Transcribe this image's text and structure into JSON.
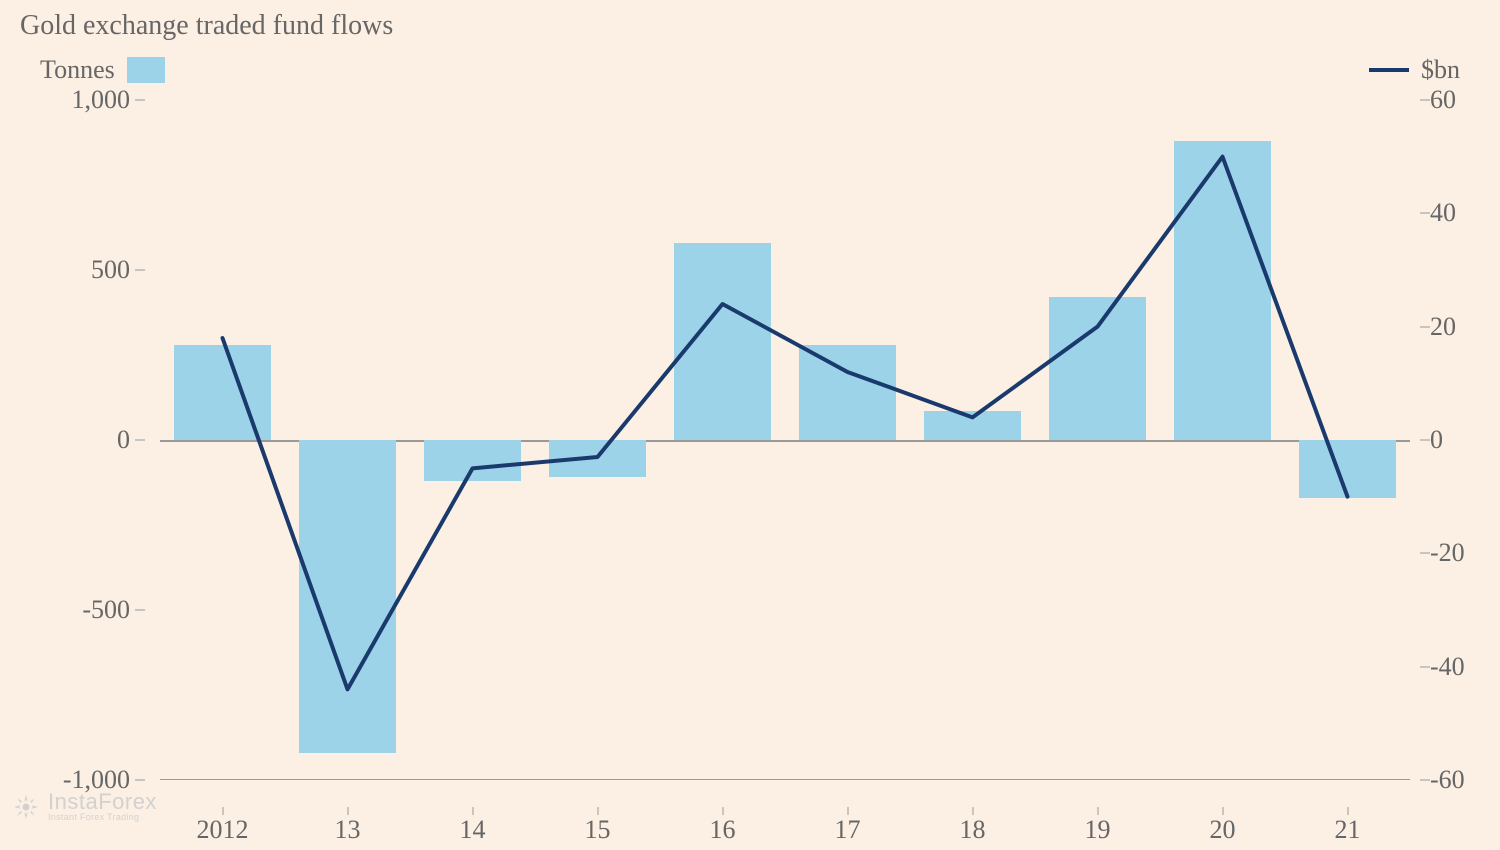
{
  "chart": {
    "type": "bar+line",
    "title": "Gold exchange traded fund flows",
    "title_fontsize": 28,
    "title_color": "#666666",
    "background_color": "#fcf0e4",
    "legend": {
      "bar_label": "Tonnes",
      "line_label": "$bn",
      "label_fontsize": 26,
      "label_color": "#666666"
    },
    "x_axis": {
      "categories": [
        "2012",
        "13",
        "14",
        "15",
        "16",
        "17",
        "18",
        "19",
        "20",
        "21"
      ],
      "label_fontsize": 26,
      "label_color": "#666666",
      "tick_color": "#999999"
    },
    "y_axis_left": {
      "label": "Tonnes",
      "min": -1000,
      "max": 1000,
      "ticks": [
        1000,
        500,
        0,
        -500,
        -1000
      ],
      "tick_labels": [
        "1,000",
        "500",
        "0",
        "-500",
        "-1,000"
      ],
      "label_fontsize": 26,
      "label_color": "#666666",
      "tick_color": "#999999"
    },
    "y_axis_right": {
      "label": "$bn",
      "min": -60,
      "max": 60,
      "ticks": [
        60,
        40,
        20,
        0,
        -20,
        -40,
        -60
      ],
      "tick_labels": [
        "60",
        "40",
        "20",
        "0",
        "-20",
        "-40",
        "-60"
      ],
      "label_fontsize": 26,
      "label_color": "#666666",
      "tick_color": "#999999"
    },
    "bars": {
      "values": [
        280,
        -920,
        -120,
        -110,
        580,
        280,
        85,
        420,
        880,
        -170
      ],
      "color": "#9dd3e8",
      "width_ratio": 0.78
    },
    "line": {
      "values": [
        18,
        -44,
        -5,
        -3,
        24,
        12,
        4,
        20,
        50,
        -10
      ],
      "color": "#1a3a6e",
      "width": 4
    },
    "zero_line_color": "#999999",
    "baseline_color": "#999999"
  },
  "watermark": {
    "brand": "InstaForex",
    "tagline": "Instant Forex Trading",
    "text_color": "#cccccc",
    "icon_color": "#cccccc"
  }
}
